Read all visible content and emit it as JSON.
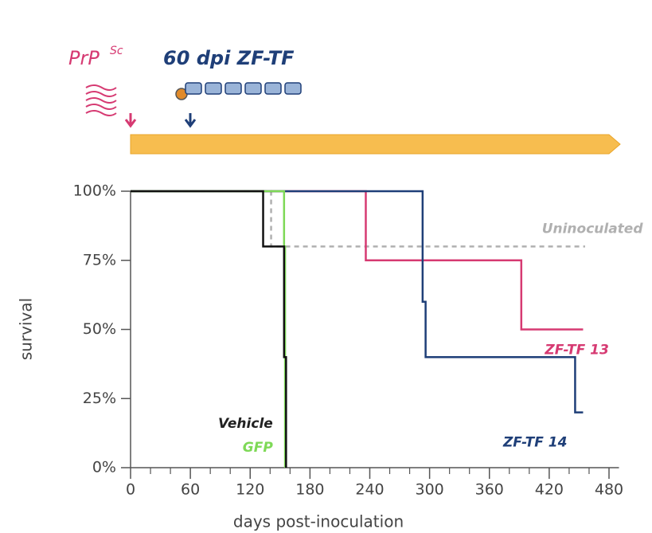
{
  "chart_data": {
    "type": "step",
    "header": {
      "agent": "PrP",
      "agent_sup": "Sc",
      "treatment": "60 dpi ZF-TF"
    },
    "xlabel": "days post-inoculation",
    "ylabel": "survival",
    "xlim": [
      0,
      490
    ],
    "ylim": [
      0,
      100
    ],
    "xticks": [
      0,
      60,
      120,
      180,
      240,
      300,
      360,
      420,
      480
    ],
    "x_minor_ticks": [
      20,
      40,
      80,
      100,
      140,
      160,
      200,
      220,
      260,
      280,
      320,
      340,
      380,
      400,
      440,
      460
    ],
    "yticks": [
      {
        "value": 0,
        "label": "0%"
      },
      {
        "value": 25,
        "label": "25%"
      },
      {
        "value": 50,
        "label": "50%"
      },
      {
        "value": 75,
        "label": "75%"
      },
      {
        "value": 100,
        "label": "100%"
      }
    ],
    "series": [
      {
        "name": "Uninoculated",
        "color": "#b0b0b0",
        "dashed": true,
        "x": [
          0,
          141,
          456
        ],
        "values": [
          100,
          80,
          80
        ]
      },
      {
        "name": "ZF-TF 13",
        "color": "#d63a72",
        "dashed": false,
        "x": [
          0,
          236,
          392,
          454
        ],
        "values": [
          100,
          75,
          50,
          50
        ]
      },
      {
        "name": "ZF-TF 14",
        "color": "#1f3f78",
        "dashed": false,
        "x": [
          0,
          293,
          296,
          446,
          454
        ],
        "values": [
          100,
          60,
          40,
          20,
          20
        ]
      },
      {
        "name": "GFP",
        "color": "#7ed957",
        "dashed": false,
        "x": [
          0,
          154,
          155
        ],
        "values": [
          100,
          80,
          0
        ]
      },
      {
        "name": "Vehicle",
        "color": "#111111",
        "dashed": false,
        "x": [
          0,
          133,
          154,
          156
        ],
        "values": [
          100,
          80,
          40,
          0
        ]
      }
    ]
  }
}
